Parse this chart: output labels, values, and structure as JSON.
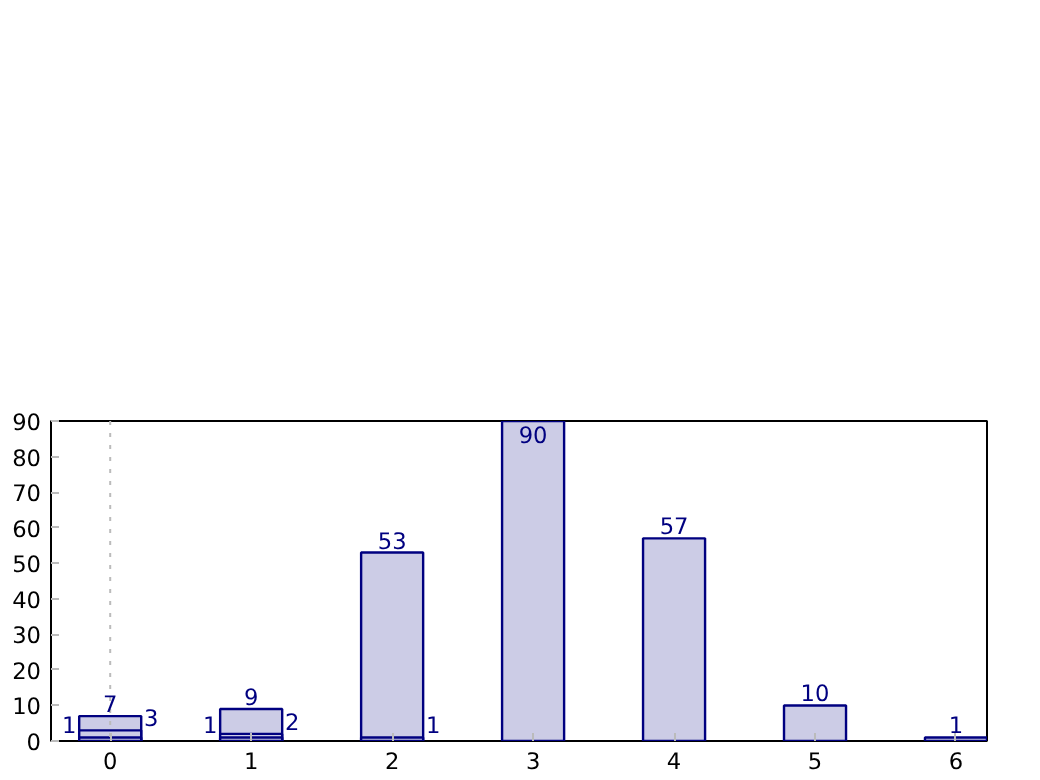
{
  "chart_data": {
    "type": "bar",
    "categories": [
      "0",
      "1",
      "2",
      "3",
      "4",
      "5",
      "6"
    ],
    "series": [
      {
        "color": "#000080",
        "values": [
          7,
          9,
          53,
          90,
          57,
          10,
          1
        ]
      },
      {
        "color": "#000080",
        "values": [
          3,
          2,
          1,
          null,
          null,
          null,
          null
        ]
      },
      {
        "color": "#000080",
        "values": [
          1,
          1,
          null,
          null,
          null,
          null,
          null
        ]
      }
    ],
    "ylim": [
      0,
      90
    ],
    "yticks": [
      0,
      10,
      20,
      30,
      40,
      50,
      60,
      70,
      80,
      90
    ],
    "data_labels": true,
    "grid": false,
    "ref_lines": [
      {
        "axis": "x",
        "value": "0",
        "color": "#bbbbbb",
        "line_style": "dotted"
      }
    ]
  }
}
